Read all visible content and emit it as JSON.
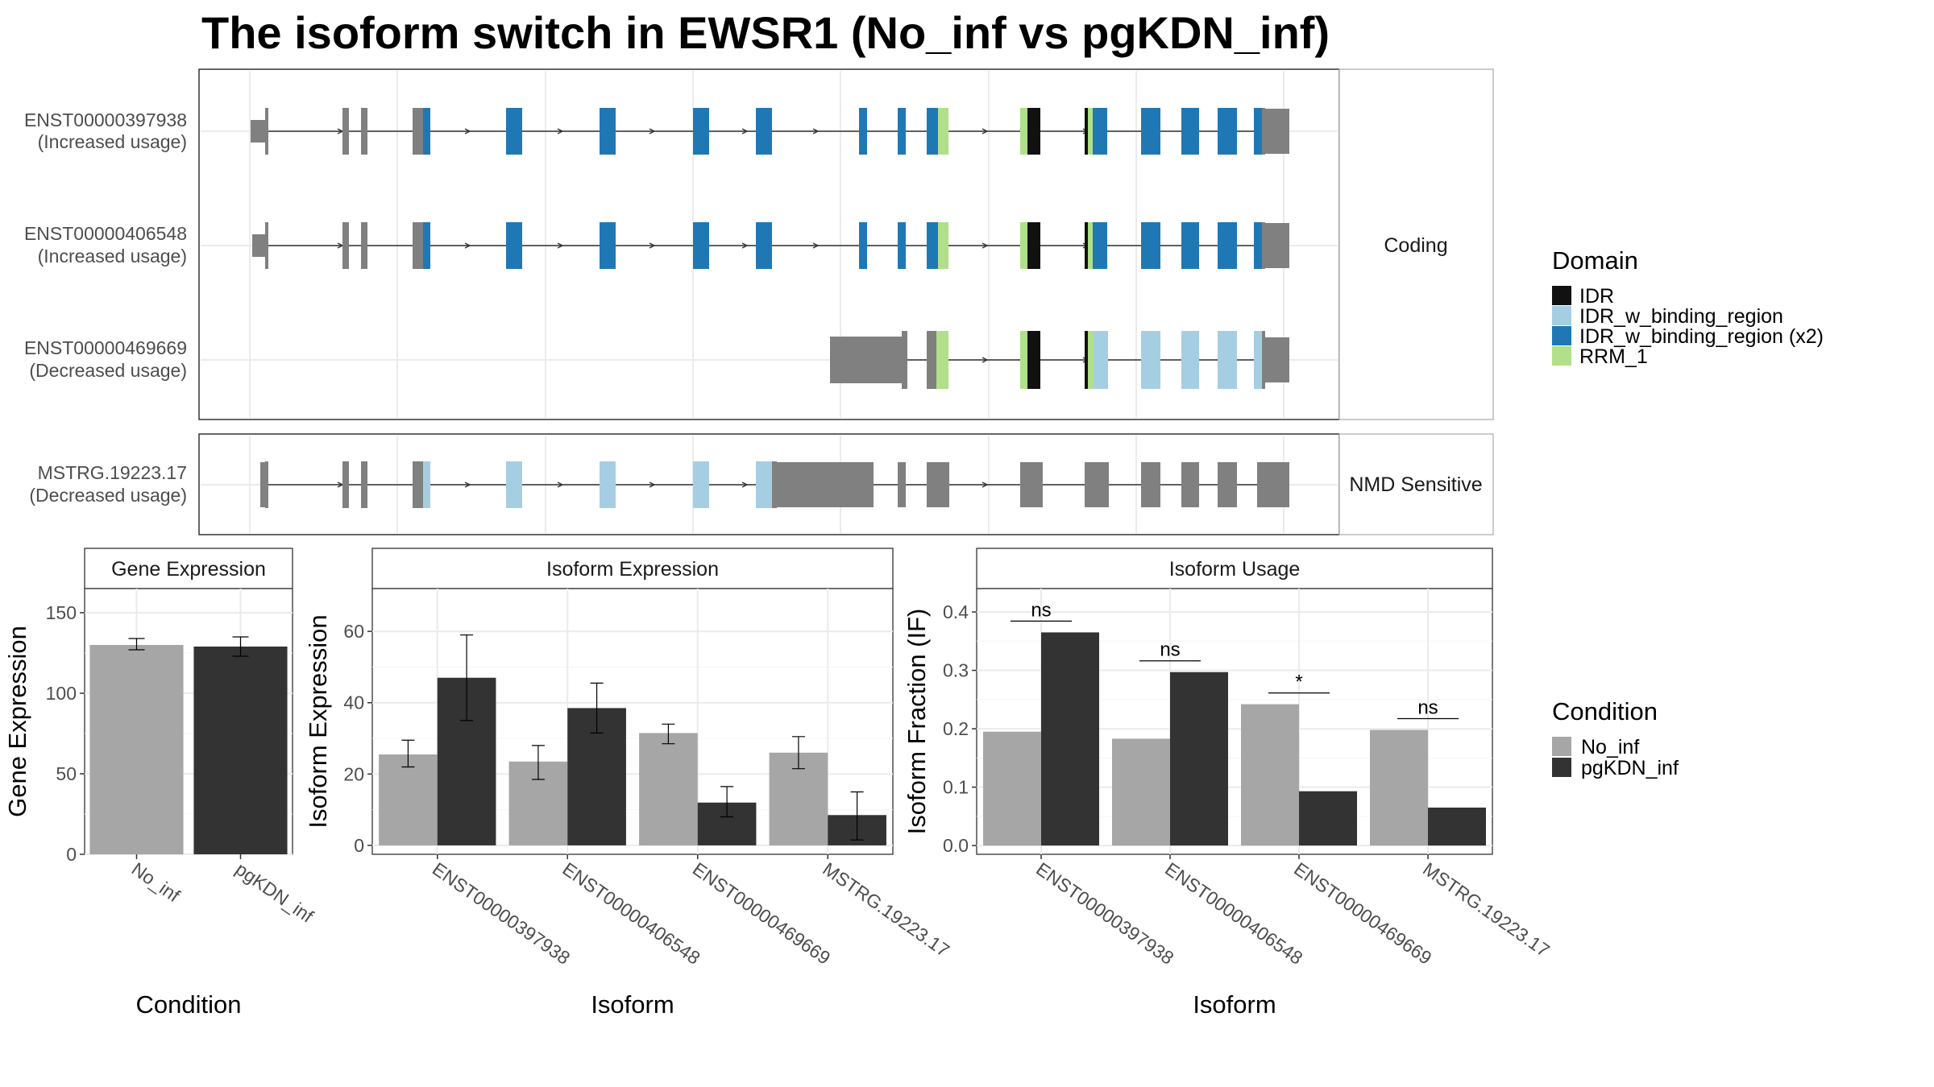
{
  "title": "The isoform switch in EWSR1 (No_inf vs pgKDN_inf)",
  "colors": {
    "IDR": "#111111",
    "IDR_w_binding_region": "#a6cee3",
    "IDR_w_binding_region (x2)": "#1f78b4",
    "RRM_1": "#b2df8a",
    "exon": "#808080",
    "No_inf": "#a6a6a6",
    "pgKDN_inf": "#333333"
  },
  "transcripts": {
    "facets": [
      "Coding",
      "NMD Sensitive"
    ],
    "rows": [
      {
        "id": "ENST00000397938",
        "usage": "(Increased usage)",
        "facet": "Coding"
      },
      {
        "id": "ENST00000406548",
        "usage": "(Increased usage)",
        "facet": "Coding"
      },
      {
        "id": "ENST00000469669",
        "usage": "(Decreased usage)",
        "facet": "Coding"
      },
      {
        "id": "MSTRG.19223.17",
        "usage": "(Decreased usage)",
        "facet": "NMD Sensitive"
      }
    ]
  },
  "legend_domain": {
    "title": "Domain",
    "items": [
      "IDR",
      "IDR_w_binding_region",
      "IDR_w_binding_region (x2)",
      "RRM_1"
    ]
  },
  "legend_condition": {
    "title": "Condition",
    "items": [
      "No_inf",
      "pgKDN_inf"
    ]
  },
  "chart_data": [
    {
      "type": "bar",
      "strip": "Gene Expression",
      "xlabel": "Condition",
      "ylabel": "Gene Expression",
      "categories": [
        "No_inf",
        "pgKDN_inf"
      ],
      "values": [
        130,
        129
      ],
      "error_low": [
        127,
        123
      ],
      "error_high": [
        134,
        135
      ],
      "ylim": [
        0,
        165
      ],
      "yticks": [
        0,
        50,
        100,
        150
      ]
    },
    {
      "type": "bar",
      "strip": "Isoform Expression",
      "xlabel": "Isoform",
      "ylabel": "Isoform Expression",
      "categories": [
        "ENST00000397938",
        "ENST00000406548",
        "ENST00000469669",
        "MSTRG.19223.17"
      ],
      "series": [
        {
          "name": "No_inf",
          "values": [
            25.5,
            23.5,
            31.5,
            26
          ],
          "error_low": [
            22,
            18.5,
            28.5,
            21.5
          ],
          "error_high": [
            29.5,
            28,
            34,
            30.5
          ]
        },
        {
          "name": "pgKDN_inf",
          "values": [
            47,
            38.5,
            12,
            8.5
          ],
          "error_low": [
            35,
            31.5,
            8,
            1.5
          ],
          "error_high": [
            59,
            45.5,
            16.5,
            15
          ]
        }
      ],
      "ylim": [
        -2.5,
        72
      ],
      "yticks": [
        0,
        20,
        40,
        60
      ]
    },
    {
      "type": "bar",
      "strip": "Isoform Usage",
      "xlabel": "Isoform",
      "ylabel": "Isoform Fraction (IF)",
      "categories": [
        "ENST00000397938",
        "ENST00000406548",
        "ENST00000469669",
        "MSTRG.19223.17"
      ],
      "series": [
        {
          "name": "No_inf",
          "values": [
            0.195,
            0.183,
            0.242,
            0.198
          ]
        },
        {
          "name": "pgKDN_inf",
          "values": [
            0.365,
            0.297,
            0.093,
            0.065
          ]
        }
      ],
      "significance": [
        "ns",
        "ns",
        "*",
        "ns"
      ],
      "ylim": [
        -0.015,
        0.44
      ],
      "yticks": [
        0.0,
        0.1,
        0.2,
        0.3,
        0.4
      ],
      "ytick_labels": [
        "0.0",
        "0.1",
        "0.2",
        "0.3",
        "0.4"
      ]
    }
  ]
}
